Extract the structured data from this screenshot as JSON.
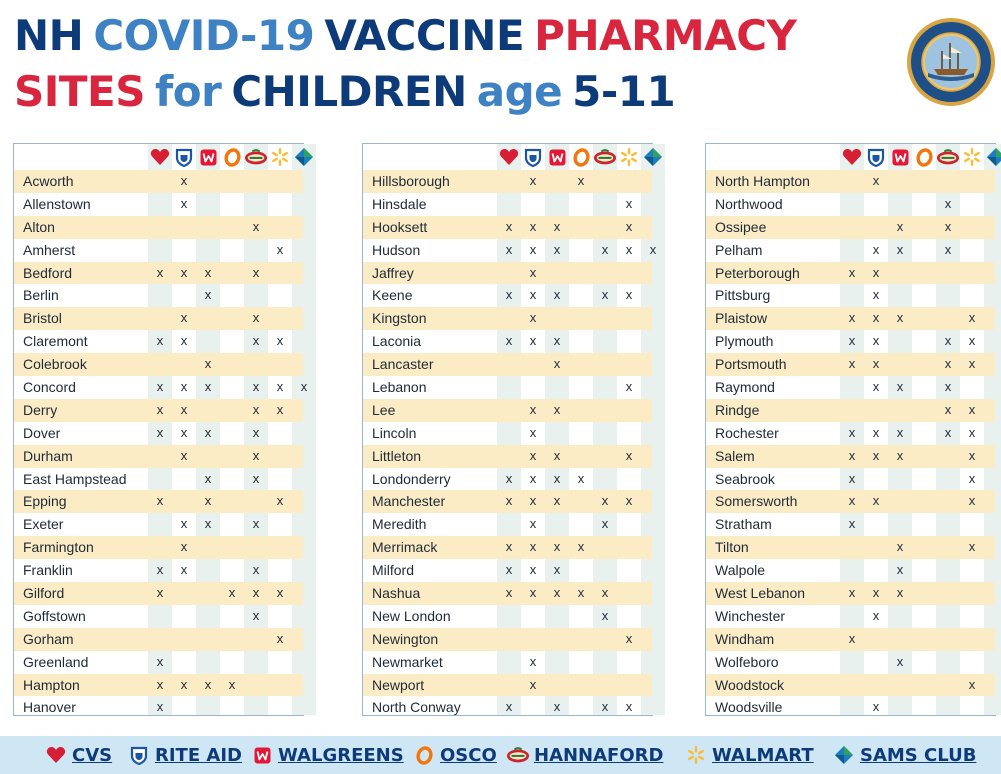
{
  "title": {
    "line1": [
      "NH",
      "COVID-19",
      "VACCINE",
      "PHARMACY"
    ],
    "line2": [
      "SITES",
      "for",
      "CHILDREN",
      "age",
      "5-11"
    ]
  },
  "colors": {
    "navy": "#0d3b7a",
    "blue": "#3e82c4",
    "red": "#d7263d",
    "stripe": "#fcecc5",
    "column": "#e9f1ee",
    "footer": "#cfe6f5"
  },
  "pharmacies": [
    {
      "key": "cvs",
      "name": "CVS",
      "icon": "heart-icon"
    },
    {
      "key": "riteaid",
      "name": "RITE AID",
      "icon": "rite-aid-shield-icon"
    },
    {
      "key": "walgreens",
      "name": "WALGREENS",
      "icon": "walgreens-w-icon"
    },
    {
      "key": "osco",
      "name": "OSCO",
      "icon": "osco-o-icon"
    },
    {
      "key": "hannaford",
      "name": "HANNAFORD",
      "icon": "hannaford-logo-icon"
    },
    {
      "key": "walmart",
      "name": "WALMART",
      "icon": "walmart-spark-icon"
    },
    {
      "key": "sams",
      "name": "SAMS CLUB",
      "icon": "sams-club-diamond-icon"
    }
  ],
  "columns": [
    [
      {
        "town": "Acworth",
        "x": [
          0,
          1,
          0,
          0,
          0,
          0,
          0
        ]
      },
      {
        "town": "Allenstown",
        "x": [
          0,
          1,
          0,
          0,
          0,
          0,
          0
        ]
      },
      {
        "town": "Alton",
        "x": [
          0,
          0,
          0,
          0,
          1,
          0,
          0
        ]
      },
      {
        "town": "Amherst",
        "x": [
          0,
          0,
          0,
          0,
          0,
          1,
          0
        ]
      },
      {
        "town": "Bedford",
        "x": [
          1,
          1,
          1,
          0,
          1,
          0,
          0
        ]
      },
      {
        "town": "Berlin",
        "x": [
          0,
          0,
          1,
          0,
          0,
          0,
          0
        ]
      },
      {
        "town": "Bristol",
        "x": [
          0,
          1,
          0,
          0,
          1,
          0,
          0
        ]
      },
      {
        "town": "Claremont",
        "x": [
          1,
          1,
          0,
          0,
          1,
          1,
          0
        ]
      },
      {
        "town": "Colebrook",
        "x": [
          0,
          0,
          1,
          0,
          0,
          0,
          0
        ]
      },
      {
        "town": "Concord",
        "x": [
          1,
          1,
          1,
          0,
          1,
          1,
          1
        ]
      },
      {
        "town": "Derry",
        "x": [
          1,
          1,
          0,
          0,
          1,
          1,
          0
        ]
      },
      {
        "town": "Dover",
        "x": [
          1,
          1,
          1,
          0,
          1,
          0,
          0
        ]
      },
      {
        "town": "Durham",
        "x": [
          0,
          1,
          0,
          0,
          1,
          0,
          0
        ]
      },
      {
        "town": "East Hampstead",
        "x": [
          0,
          0,
          1,
          0,
          1,
          0,
          0
        ]
      },
      {
        "town": "Epping",
        "x": [
          1,
          0,
          1,
          0,
          0,
          1,
          0
        ]
      },
      {
        "town": "Exeter",
        "x": [
          0,
          1,
          1,
          0,
          1,
          0,
          0
        ]
      },
      {
        "town": "Farmington",
        "x": [
          0,
          1,
          0,
          0,
          0,
          0,
          0
        ]
      },
      {
        "town": "Franklin",
        "x": [
          1,
          1,
          0,
          0,
          1,
          0,
          0
        ]
      },
      {
        "town": "Gilford",
        "x": [
          1,
          0,
          0,
          1,
          1,
          1,
          0
        ]
      },
      {
        "town": "Goffstown",
        "x": [
          0,
          0,
          0,
          0,
          1,
          0,
          0
        ]
      },
      {
        "town": "Gorham",
        "x": [
          0,
          0,
          0,
          0,
          0,
          1,
          0
        ]
      },
      {
        "town": "Greenland",
        "x": [
          1,
          0,
          0,
          0,
          0,
          0,
          0
        ]
      },
      {
        "town": "Hampton",
        "x": [
          1,
          1,
          1,
          1,
          0,
          0,
          0
        ]
      },
      {
        "town": "Hanover",
        "x": [
          1,
          0,
          0,
          0,
          0,
          0,
          0
        ]
      }
    ],
    [
      {
        "town": "Hillsborough",
        "x": [
          0,
          1,
          0,
          1,
          0,
          0,
          0
        ]
      },
      {
        "town": "Hinsdale",
        "x": [
          0,
          0,
          0,
          0,
          0,
          1,
          0
        ]
      },
      {
        "town": "Hooksett",
        "x": [
          1,
          1,
          1,
          0,
          0,
          1,
          0
        ]
      },
      {
        "town": "Hudson",
        "x": [
          1,
          1,
          1,
          0,
          1,
          1,
          1
        ]
      },
      {
        "town": "Jaffrey",
        "x": [
          0,
          1,
          0,
          0,
          0,
          0,
          0
        ]
      },
      {
        "town": "Keene",
        "x": [
          1,
          1,
          1,
          0,
          1,
          1,
          0
        ]
      },
      {
        "town": "Kingston",
        "x": [
          0,
          1,
          0,
          0,
          0,
          0,
          0
        ]
      },
      {
        "town": "Laconia",
        "x": [
          1,
          1,
          1,
          0,
          0,
          0,
          0
        ]
      },
      {
        "town": "Lancaster",
        "x": [
          0,
          0,
          1,
          0,
          0,
          0,
          0
        ]
      },
      {
        "town": "Lebanon",
        "x": [
          0,
          0,
          0,
          0,
          0,
          1,
          0
        ]
      },
      {
        "town": "Lee",
        "x": [
          0,
          1,
          1,
          0,
          0,
          0,
          0
        ]
      },
      {
        "town": "Lincoln",
        "x": [
          0,
          1,
          0,
          0,
          0,
          0,
          0
        ]
      },
      {
        "town": "Littleton",
        "x": [
          0,
          1,
          1,
          0,
          0,
          1,
          0
        ]
      },
      {
        "town": "Londonderry",
        "x": [
          1,
          1,
          1,
          1,
          0,
          0,
          0
        ]
      },
      {
        "town": "Manchester",
        "x": [
          1,
          1,
          1,
          0,
          1,
          1,
          0
        ]
      },
      {
        "town": "Meredith",
        "x": [
          0,
          1,
          0,
          0,
          1,
          0,
          0
        ]
      },
      {
        "town": "Merrimack",
        "x": [
          1,
          1,
          1,
          1,
          0,
          0,
          0
        ]
      },
      {
        "town": "Milford",
        "x": [
          1,
          1,
          1,
          0,
          0,
          0,
          0
        ]
      },
      {
        "town": "Nashua",
        "x": [
          1,
          1,
          1,
          1,
          1,
          0,
          0
        ]
      },
      {
        "town": "New London",
        "x": [
          0,
          0,
          0,
          0,
          1,
          0,
          0
        ]
      },
      {
        "town": "Newington",
        "x": [
          0,
          0,
          0,
          0,
          0,
          1,
          0
        ]
      },
      {
        "town": "Newmarket",
        "x": [
          0,
          1,
          0,
          0,
          0,
          0,
          0
        ]
      },
      {
        "town": "Newport",
        "x": [
          0,
          1,
          0,
          0,
          0,
          0,
          0
        ]
      },
      {
        "town": "North Conway",
        "x": [
          1,
          0,
          1,
          0,
          1,
          1,
          0
        ]
      }
    ],
    [
      {
        "town": "North Hampton",
        "x": [
          0,
          1,
          0,
          0,
          0,
          0,
          0
        ]
      },
      {
        "town": "Northwood",
        "x": [
          0,
          0,
          0,
          0,
          1,
          0,
          0
        ]
      },
      {
        "town": "Ossipee",
        "x": [
          0,
          0,
          1,
          0,
          1,
          0,
          0
        ]
      },
      {
        "town": "Pelham",
        "x": [
          0,
          1,
          1,
          0,
          1,
          0,
          0
        ]
      },
      {
        "town": "Peterborough",
        "x": [
          1,
          1,
          0,
          0,
          0,
          0,
          0
        ]
      },
      {
        "town": "Pittsburg",
        "x": [
          0,
          1,
          0,
          0,
          0,
          0,
          0
        ]
      },
      {
        "town": "Plaistow",
        "x": [
          1,
          1,
          1,
          0,
          0,
          1,
          0
        ]
      },
      {
        "town": "Plymouth",
        "x": [
          1,
          1,
          0,
          0,
          1,
          1,
          0
        ]
      },
      {
        "town": "Portsmouth",
        "x": [
          1,
          1,
          0,
          0,
          1,
          1,
          0
        ]
      },
      {
        "town": "Raymond",
        "x": [
          0,
          1,
          1,
          0,
          1,
          0,
          0
        ]
      },
      {
        "town": "Rindge",
        "x": [
          0,
          0,
          0,
          0,
          1,
          1,
          0
        ]
      },
      {
        "town": "Rochester",
        "x": [
          1,
          1,
          1,
          0,
          1,
          1,
          0
        ]
      },
      {
        "town": "Salem",
        "x": [
          1,
          1,
          1,
          0,
          0,
          1,
          0
        ]
      },
      {
        "town": "Seabrook",
        "x": [
          1,
          0,
          0,
          0,
          0,
          1,
          0
        ]
      },
      {
        "town": "Somersworth",
        "x": [
          1,
          1,
          0,
          0,
          0,
          1,
          0
        ]
      },
      {
        "town": "Stratham",
        "x": [
          1,
          0,
          0,
          0,
          0,
          0,
          0
        ]
      },
      {
        "town": "Tilton",
        "x": [
          0,
          0,
          1,
          0,
          0,
          1,
          0
        ]
      },
      {
        "town": "Walpole",
        "x": [
          0,
          0,
          1,
          0,
          0,
          0,
          0
        ]
      },
      {
        "town": "West Lebanon",
        "x": [
          1,
          1,
          1,
          0,
          0,
          0,
          0
        ]
      },
      {
        "town": "Winchester",
        "x": [
          0,
          1,
          0,
          0,
          0,
          0,
          0
        ]
      },
      {
        "town": "Windham",
        "x": [
          1,
          0,
          0,
          0,
          0,
          0,
          0
        ]
      },
      {
        "town": "Wolfeboro",
        "x": [
          0,
          0,
          1,
          0,
          0,
          0,
          0
        ]
      },
      {
        "town": "Woodstock",
        "x": [
          0,
          0,
          0,
          0,
          0,
          1,
          0
        ]
      },
      {
        "town": "Woodsville",
        "x": [
          0,
          1,
          0,
          0,
          0,
          0,
          0
        ]
      }
    ]
  ],
  "mark_char": "x"
}
